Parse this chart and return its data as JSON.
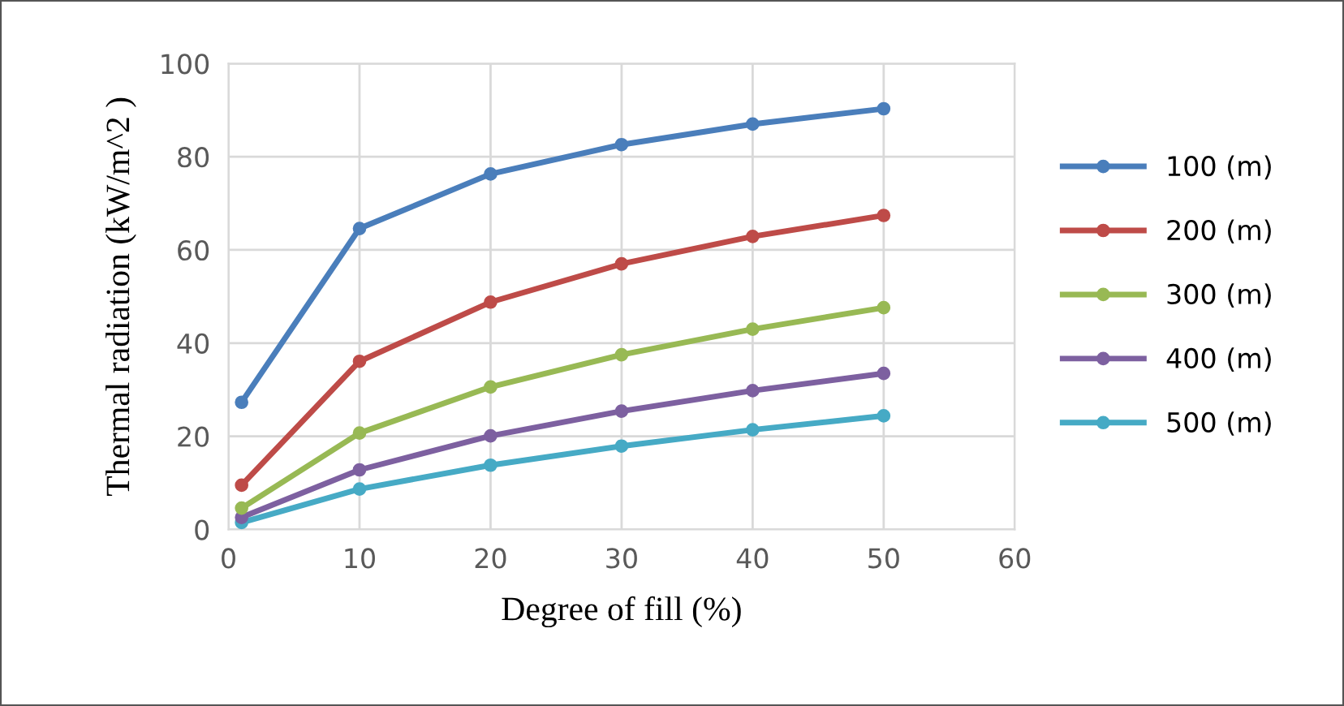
{
  "chart_data": {
    "type": "line",
    "xlabel": "Degree of fill (%)",
    "ylabel": "Thermal radiation (kW/m^2 )",
    "x": [
      1,
      10,
      20,
      30,
      40,
      50
    ],
    "series": [
      {
        "name": "100 (m)",
        "color": "#4a7ebb",
        "values": [
          27.3,
          64.6,
          76.3,
          82.6,
          87.0,
          90.3
        ]
      },
      {
        "name": "200 (m)",
        "color": "#be4b48",
        "values": [
          9.5,
          36.1,
          48.8,
          57.0,
          62.9,
          67.4
        ]
      },
      {
        "name": "300 (m)",
        "color": "#98b954",
        "values": [
          4.6,
          20.7,
          30.6,
          37.5,
          43.0,
          47.6
        ]
      },
      {
        "name": "400 (m)",
        "color": "#7d60a0",
        "values": [
          2.6,
          12.8,
          20.1,
          25.4,
          29.8,
          33.5
        ]
      },
      {
        "name": "500 (m)",
        "color": "#46aac5",
        "values": [
          1.5,
          8.7,
          13.8,
          17.9,
          21.4,
          24.4
        ]
      }
    ],
    "xlim": [
      0,
      60
    ],
    "xticks": [
      0,
      10,
      20,
      30,
      40,
      50,
      60
    ],
    "ylim": [
      0,
      100
    ],
    "yticks": [
      0,
      20,
      40,
      60,
      80,
      100
    ],
    "grid": true,
    "legend": "right",
    "marker": "circle",
    "line_style": "solid"
  }
}
